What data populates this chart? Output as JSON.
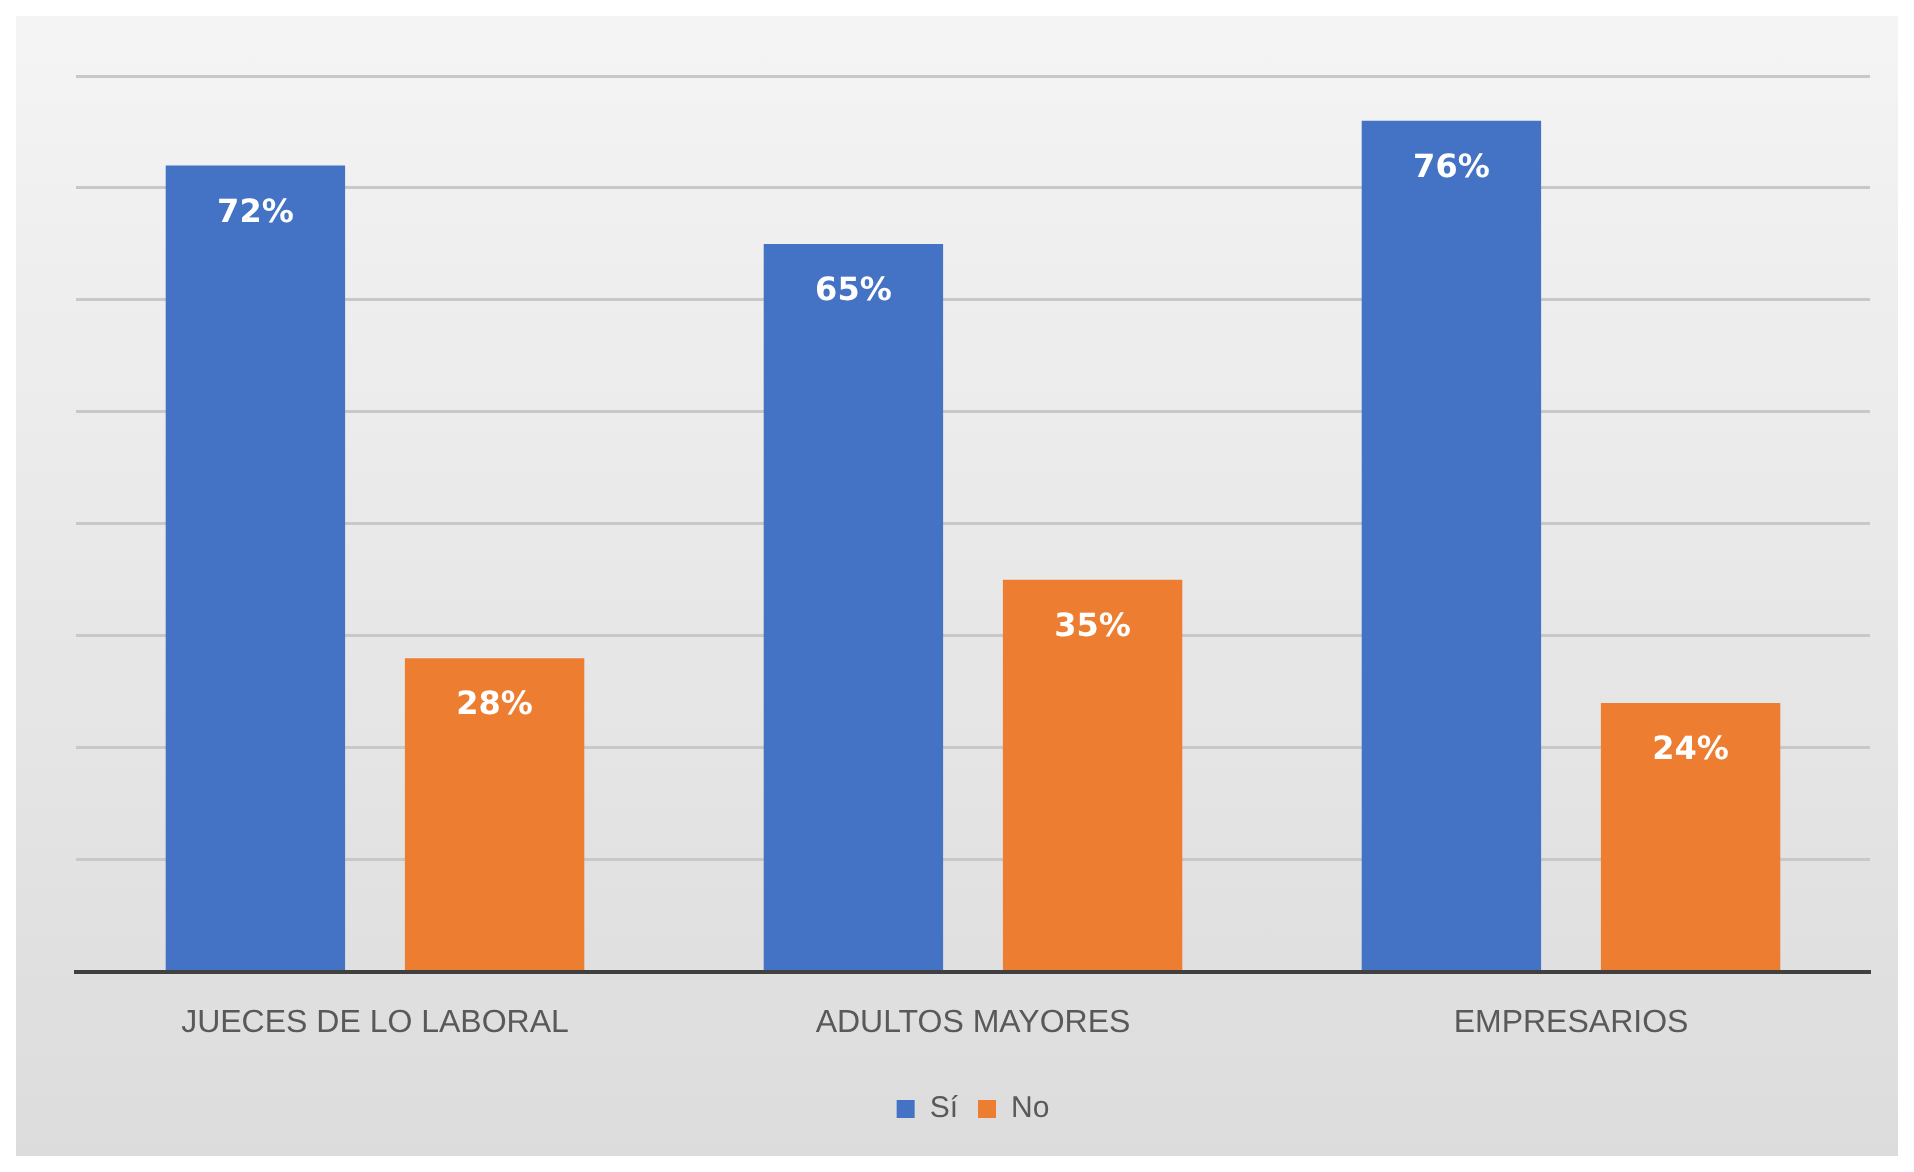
{
  "chart_data": {
    "type": "bar",
    "categories": [
      "JUECES DE LO LABORAL",
      "ADULTOS MAYORES",
      "EMPRESARIOS"
    ],
    "series": [
      {
        "name": "Sí",
        "color": "#4472c4",
        "values": [
          72,
          65,
          76
        ],
        "value_labels": [
          "72%",
          "65%",
          "76%"
        ]
      },
      {
        "name": "No",
        "color": "#ed7d31",
        "values": [
          28,
          35,
          24
        ],
        "value_labels": [
          "28%",
          "35%",
          "24%"
        ]
      }
    ],
    "ylim": [
      0,
      80
    ],
    "yticks": [
      {
        "value": 0,
        "label": null
      },
      {
        "value": 10,
        "label": null
      },
      {
        "value": 20,
        "label": null
      },
      {
        "value": 30,
        "label": null
      },
      {
        "value": 40,
        "label": null
      },
      {
        "value": 50,
        "label": null
      },
      {
        "value": 60,
        "label": null
      },
      {
        "value": 70,
        "label": null
      },
      {
        "value": 80,
        "label": null
      }
    ],
    "tick_labels": "x",
    "grid": "y",
    "legend": "bottom"
  }
}
